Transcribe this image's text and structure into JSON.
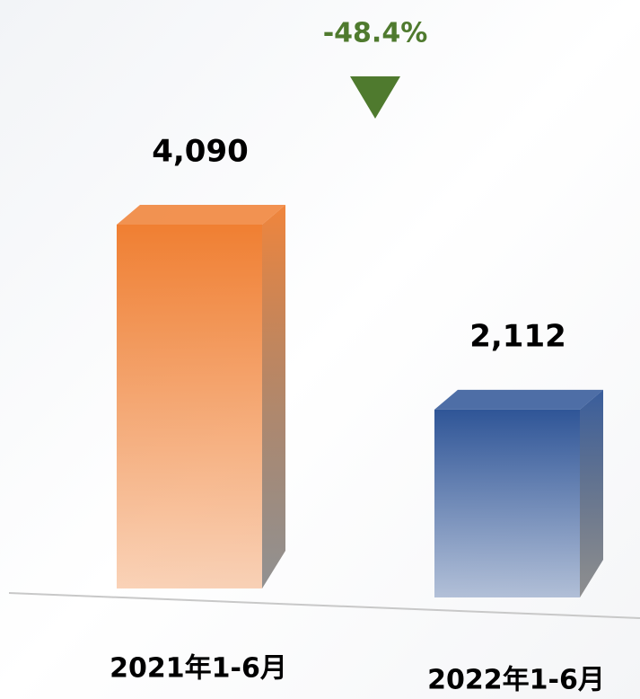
{
  "chart_data": {
    "type": "bar3d",
    "categories": [
      "2021年1-6月",
      "2022年1-6月"
    ],
    "values": [
      4090,
      2112
    ],
    "value_labels": [
      "4,090",
      "2,112"
    ],
    "colors": [
      "#f07f32",
      "#2f5597"
    ],
    "annotation": "-48.4%",
    "annotation_color": "#4f7a2e"
  }
}
